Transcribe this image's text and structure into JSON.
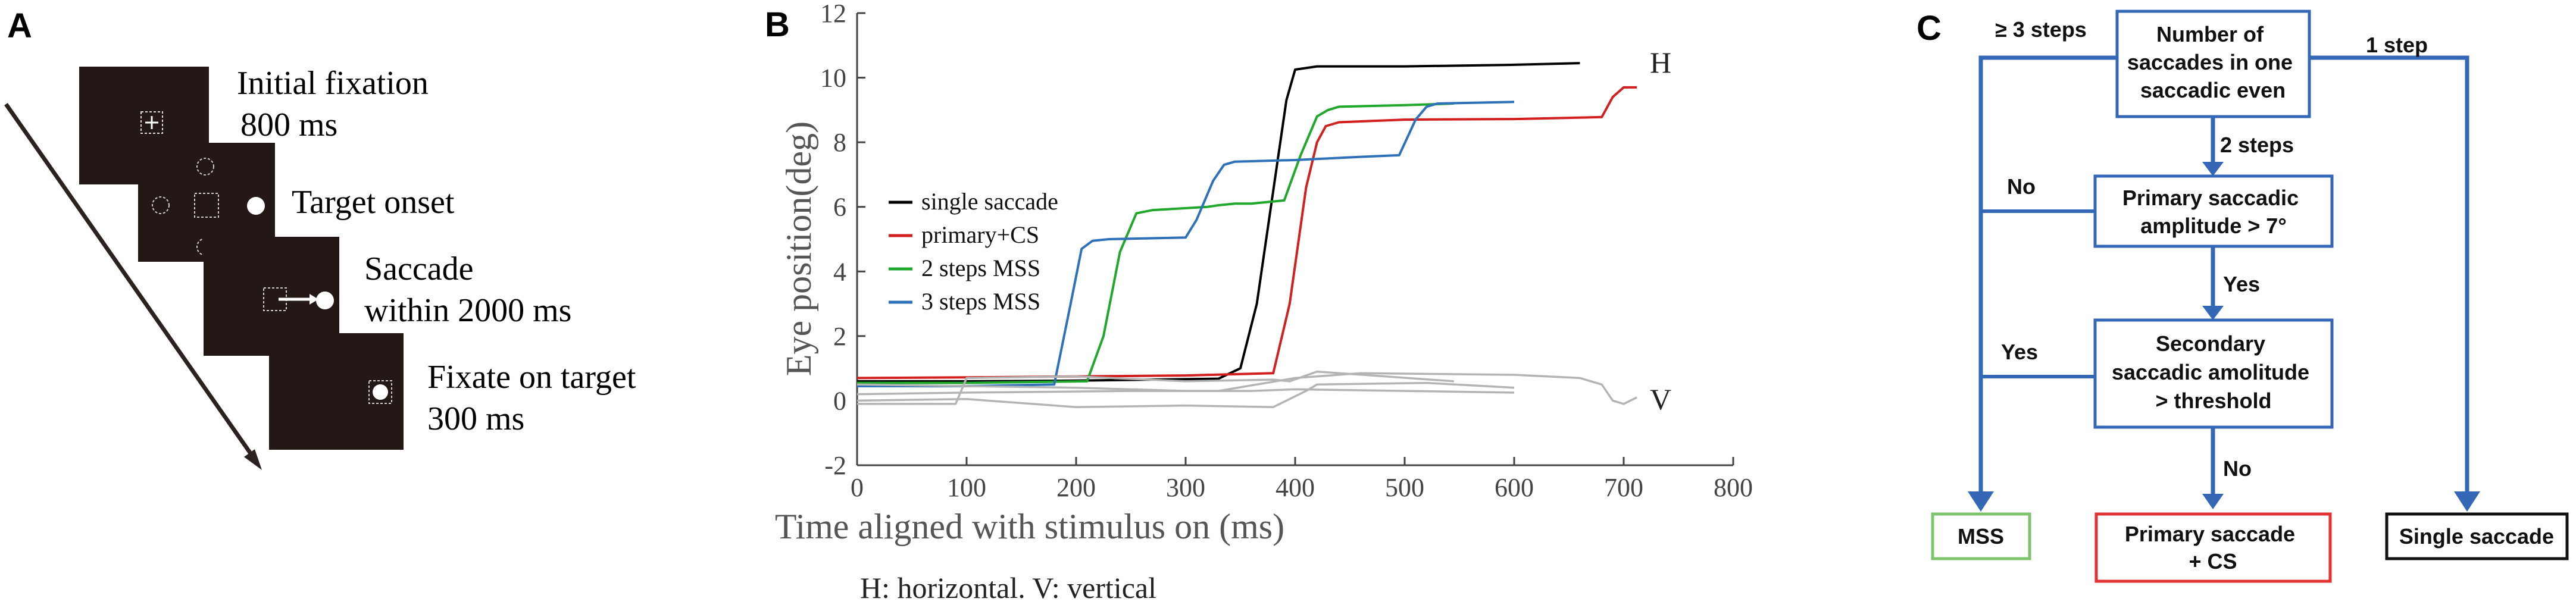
{
  "panels": {
    "a": "A",
    "b": "B",
    "c": "C"
  },
  "panel_a": {
    "step1": {
      "title": "Initial fixation",
      "duration": "800 ms"
    },
    "step2": {
      "title": "Target onset"
    },
    "step3": {
      "title": "Saccade",
      "duration": "within 2000 ms"
    },
    "step4": {
      "title": "Fixate on target",
      "duration": "300 ms"
    },
    "colors": {
      "screen": "#241816",
      "arrow": "#2b2220"
    }
  },
  "chart_data": {
    "type": "line",
    "xlabel": "Time aligned with stimulus on (ms)",
    "ylabel": "Eye position(deg)",
    "xlim": [
      0,
      800
    ],
    "ylim": [
      -2,
      12
    ],
    "xticks": [
      "0",
      "100",
      "200",
      "300",
      "400",
      "500",
      "600",
      "700",
      "800"
    ],
    "yticks": [
      "-2",
      "0",
      "2",
      "4",
      "6",
      "8",
      "10",
      "12"
    ],
    "legend": [
      "single saccade",
      "primary+CS",
      "2 steps MSS",
      "3 steps MSS"
    ],
    "annotations": {
      "h": "H",
      "v": "V"
    },
    "caption": "H: horizontal. V: vertical",
    "series": [
      {
        "name": "single saccade",
        "color": "#000000",
        "x": [
          0,
          100,
          200,
          330,
          350,
          365,
          380,
          392,
          400,
          420,
          500,
          600,
          660
        ],
        "y": [
          0.6,
          0.6,
          0.62,
          0.68,
          1.0,
          3.0,
          6.5,
          9.3,
          10.25,
          10.35,
          10.35,
          10.4,
          10.45
        ]
      },
      {
        "name": "primary+CS",
        "color": "#d21f1f",
        "x": [
          0,
          100,
          200,
          300,
          380,
          395,
          410,
          420,
          428,
          440,
          500,
          600,
          680,
          690,
          700,
          712
        ],
        "y": [
          0.7,
          0.72,
          0.75,
          0.78,
          0.85,
          3.0,
          6.6,
          8.0,
          8.5,
          8.62,
          8.7,
          8.72,
          8.78,
          9.4,
          9.7,
          9.7
        ]
      },
      {
        "name": "2 steps MSS",
        "color": "#1fa82c",
        "x": [
          0,
          100,
          210,
          225,
          240,
          255,
          270,
          320,
          330,
          345,
          360,
          390,
          405,
          420,
          430,
          440,
          500,
          545
        ],
        "y": [
          0.55,
          0.55,
          0.6,
          2.0,
          4.6,
          5.8,
          5.9,
          6.0,
          6.05,
          6.1,
          6.1,
          6.2,
          7.6,
          8.8,
          9.0,
          9.1,
          9.15,
          9.2
        ]
      },
      {
        "name": "3 steps MSS",
        "color": "#2e71b8",
        "x": [
          0,
          100,
          180,
          195,
          205,
          215,
          230,
          300,
          310,
          325,
          335,
          345,
          400,
          460,
          495,
          510,
          520,
          530,
          600
        ],
        "y": [
          0.45,
          0.45,
          0.5,
          3.0,
          4.7,
          4.95,
          5.0,
          5.05,
          5.6,
          6.8,
          7.3,
          7.4,
          7.45,
          7.55,
          7.6,
          8.7,
          9.1,
          9.2,
          9.25
        ]
      },
      {
        "name": "vertical 1",
        "color": "#b4b4b4",
        "x": [
          0,
          100,
          250,
          330,
          400,
          460,
          600,
          660,
          680,
          690,
          700,
          712
        ],
        "y": [
          0.2,
          0.25,
          0.3,
          0.3,
          0.7,
          0.85,
          0.8,
          0.7,
          0.5,
          0.0,
          -0.1,
          0.1
        ]
      },
      {
        "name": "vertical 2",
        "color": "#b4b4b4",
        "x": [
          0,
          90,
          100,
          200,
          300,
          380,
          395,
          420,
          545
        ],
        "y": [
          -0.1,
          -0.1,
          0.7,
          0.75,
          0.6,
          0.65,
          0.6,
          0.9,
          0.6
        ]
      },
      {
        "name": "vertical 3",
        "color": "#b4b4b4",
        "x": [
          0,
          100,
          200,
          300,
          380,
          410,
          420,
          520,
          600
        ],
        "y": [
          0.0,
          0.05,
          -0.2,
          -0.15,
          -0.2,
          0.3,
          0.5,
          0.55,
          0.4
        ]
      },
      {
        "name": "vertical 4",
        "color": "#b4b4b4",
        "x": [
          0,
          100,
          200,
          300,
          360,
          400,
          500,
          600
        ],
        "y": [
          0.5,
          0.45,
          0.4,
          0.3,
          0.3,
          0.35,
          0.3,
          0.25
        ]
      }
    ]
  },
  "panel_c": {
    "root": [
      "Number of",
      "saccades in one",
      "saccadic even"
    ],
    "edge_left": "≥ 3 steps",
    "edge_right": "1 step",
    "edge_down": "2 steps",
    "q1": [
      "Primary saccadic",
      "amplitude > 7°"
    ],
    "q1_no": "No",
    "q1_yes": "Yes",
    "q2": [
      "Secondary",
      "saccadic amolitude",
      "> threshold"
    ],
    "q2_yes": "Yes",
    "q2_no": "No",
    "out_mss": "MSS",
    "out_cs": [
      "Primary saccade",
      "+ CS"
    ],
    "out_single": "Single saccade",
    "colors": {
      "flow": "#3467b6",
      "mss": "#7cc36b",
      "cs": "#e23232",
      "single": "#111111"
    }
  }
}
